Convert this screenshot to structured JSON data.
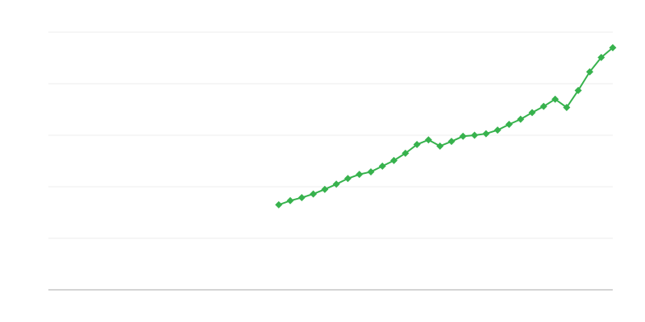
{
  "chart_data": {
    "type": "line",
    "title": "",
    "xlabel": "",
    "ylabel": "",
    "xlim": [
      0,
      49
    ],
    "ylim": [
      0,
      5
    ],
    "yticks": [
      0,
      1,
      2,
      3,
      4,
      5
    ],
    "grid": true,
    "legend": "none",
    "colors": {
      "series": "#37b24d",
      "grid": "#eeeeee",
      "axis": "#aaaaaa"
    },
    "series": [
      {
        "x": [
          20,
          21,
          22,
          23,
          24,
          25,
          26,
          27,
          28,
          29,
          30,
          31,
          32,
          33,
          34,
          35,
          36,
          37,
          38,
          39,
          40,
          41,
          42,
          43,
          44,
          45,
          46,
          47,
          48,
          49
        ],
        "values": [
          1.65,
          1.73,
          1.79,
          1.86,
          1.95,
          2.05,
          2.16,
          2.24,
          2.29,
          2.4,
          2.51,
          2.65,
          2.82,
          2.91,
          2.79,
          2.88,
          2.98,
          3.0,
          3.03,
          3.1,
          3.21,
          3.31,
          3.44,
          3.56,
          3.7,
          3.54,
          3.87,
          4.23,
          4.51,
          4.7
        ]
      }
    ]
  }
}
